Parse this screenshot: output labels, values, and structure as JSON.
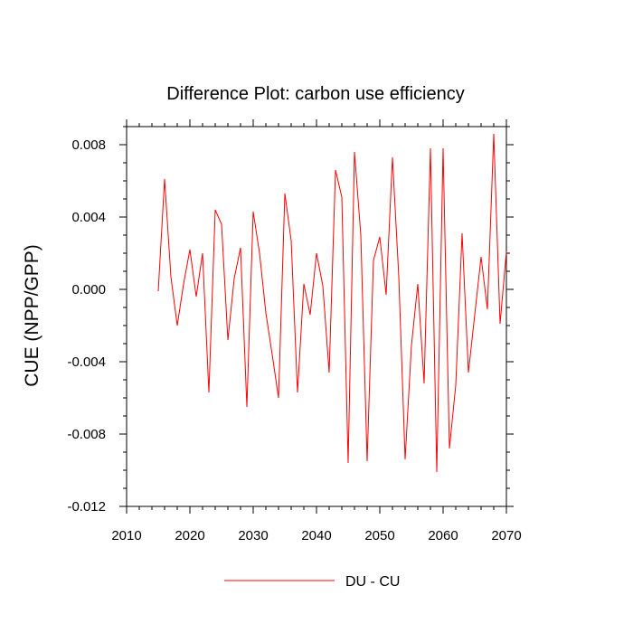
{
  "chart_data": {
    "type": "line",
    "title": "Difference Plot: carbon use efficiency",
    "xlabel": "",
    "ylabel": "CUE  (NPP/GPP)",
    "xlim": [
      2010,
      2070
    ],
    "ylim": [
      -0.012,
      0.009
    ],
    "x_ticks": [
      2010,
      2020,
      2030,
      2040,
      2050,
      2060,
      2070
    ],
    "x_tick_labels": [
      "2010",
      "2020",
      "2030",
      "2040",
      "2050",
      "2060",
      "2070"
    ],
    "y_ticks": [
      -0.012,
      -0.008,
      -0.004,
      0.0,
      0.004,
      0.008
    ],
    "y_tick_labels": [
      "-0.012",
      "-0.008",
      "-0.004",
      "0.000",
      "0.004",
      "0.008"
    ],
    "legend_position": "bottom-center",
    "series": [
      {
        "name": "DU - CU",
        "color": "#ff0000",
        "x": [
          2015,
          2016,
          2017,
          2018,
          2019,
          2020,
          2021,
          2022,
          2023,
          2024,
          2025,
          2026,
          2027,
          2028,
          2029,
          2030,
          2031,
          2032,
          2033,
          2034,
          2035,
          2036,
          2037,
          2038,
          2039,
          2040,
          2041,
          2042,
          2043,
          2044,
          2045,
          2046,
          2047,
          2048,
          2049,
          2050,
          2051,
          2052,
          2053,
          2054,
          2055,
          2056,
          2057,
          2058,
          2059,
          2060,
          2061,
          2062,
          2063,
          2064,
          2065,
          2066,
          2067,
          2068,
          2069,
          2070
        ],
        "values": [
          -0.0001,
          0.0061,
          0.0007,
          -0.002,
          0.0003,
          0.0022,
          -0.0004,
          0.002,
          -0.0057,
          0.0044,
          0.0036,
          -0.0028,
          0.0006,
          0.0023,
          -0.0065,
          0.0043,
          0.002,
          -0.0013,
          -0.0036,
          -0.006,
          0.0053,
          0.0027,
          -0.0057,
          0.0003,
          -0.0014,
          0.002,
          0.0002,
          -0.0046,
          0.0066,
          0.0051,
          -0.0096,
          0.0076,
          0.003,
          -0.0095,
          0.0016,
          0.0029,
          -0.0003,
          0.0073,
          0.0007,
          -0.0094,
          -0.0031,
          0.0003,
          -0.0052,
          0.0078,
          -0.0101,
          0.0078,
          -0.0088,
          -0.0053,
          0.0031,
          -0.0046,
          -0.0014,
          0.0018,
          -0.0011,
          0.0086,
          -0.0019,
          0.0021
        ]
      }
    ]
  }
}
